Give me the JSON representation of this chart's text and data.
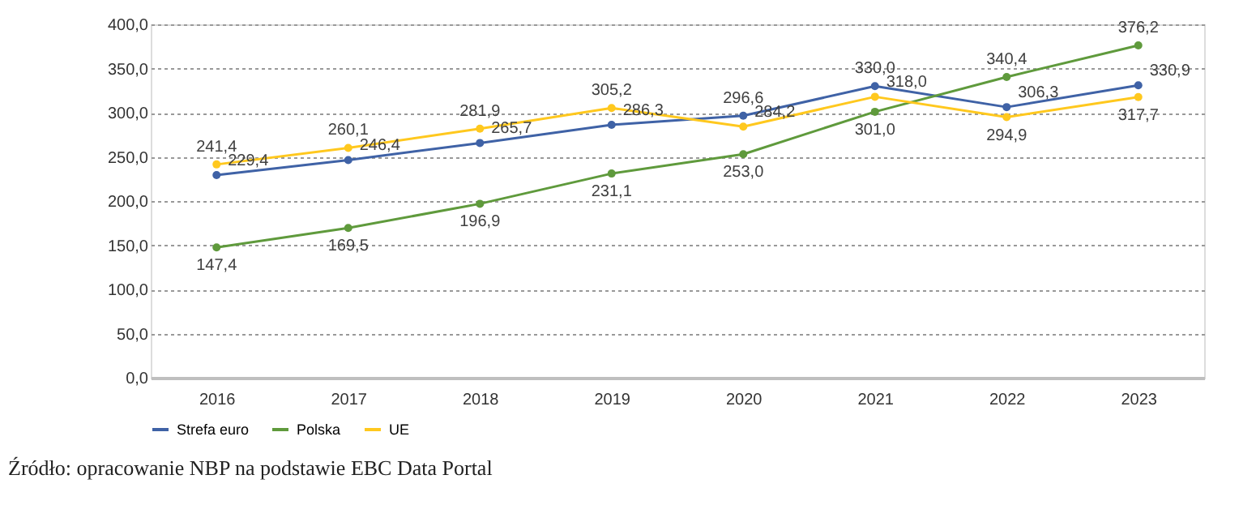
{
  "chart_data": {
    "type": "line",
    "categories": [
      "2016",
      "2017",
      "2018",
      "2019",
      "2020",
      "2021",
      "2022",
      "2023"
    ],
    "series": [
      {
        "name": "Strefa euro",
        "color": "#3f62a6",
        "values": [
          229.4,
          246.4,
          265.7,
          286.3,
          296.6,
          330.0,
          306.3,
          330.9
        ],
        "value_labels": [
          "229,4",
          "246,4",
          "265,7",
          "286,3",
          "296,6",
          "330,0",
          "306,3",
          "330,9"
        ]
      },
      {
        "name": "Polska",
        "color": "#5f9a3c",
        "values": [
          147.4,
          169.5,
          196.9,
          231.1,
          253.0,
          301.0,
          340.4,
          376.2
        ],
        "value_labels": [
          "147,4",
          "169,5",
          "196,9",
          "231,1",
          "253,0",
          "301,0",
          "340,4",
          "376,2"
        ]
      },
      {
        "name": "UE",
        "color": "#ffc81e",
        "values": [
          241.4,
          260.1,
          281.9,
          305.2,
          284.2,
          318.0,
          294.9,
          317.7
        ],
        "value_labels": [
          "241,4",
          "260,1",
          "281,9",
          "305,2",
          "284,2",
          "318,0",
          "294,9",
          "317,7"
        ]
      }
    ],
    "ylim": [
      0,
      400
    ],
    "yticks": [
      {
        "value": 0,
        "label": "0,0"
      },
      {
        "value": 50,
        "label": "50,0"
      },
      {
        "value": 100,
        "label": "100,0"
      },
      {
        "value": 150,
        "label": "150,0"
      },
      {
        "value": 200,
        "label": "200,0"
      },
      {
        "value": 250,
        "label": "250,0"
      },
      {
        "value": 300,
        "label": "300,0"
      },
      {
        "value": 350,
        "label": "350,0"
      },
      {
        "value": 400,
        "label": "400,0"
      }
    ],
    "grid": "y",
    "legend": "bottom",
    "marker": "circle",
    "line_style": "solid",
    "annotations": [
      "Źródło: opracowanie NBP na podstawie EBC Data Portal"
    ]
  }
}
